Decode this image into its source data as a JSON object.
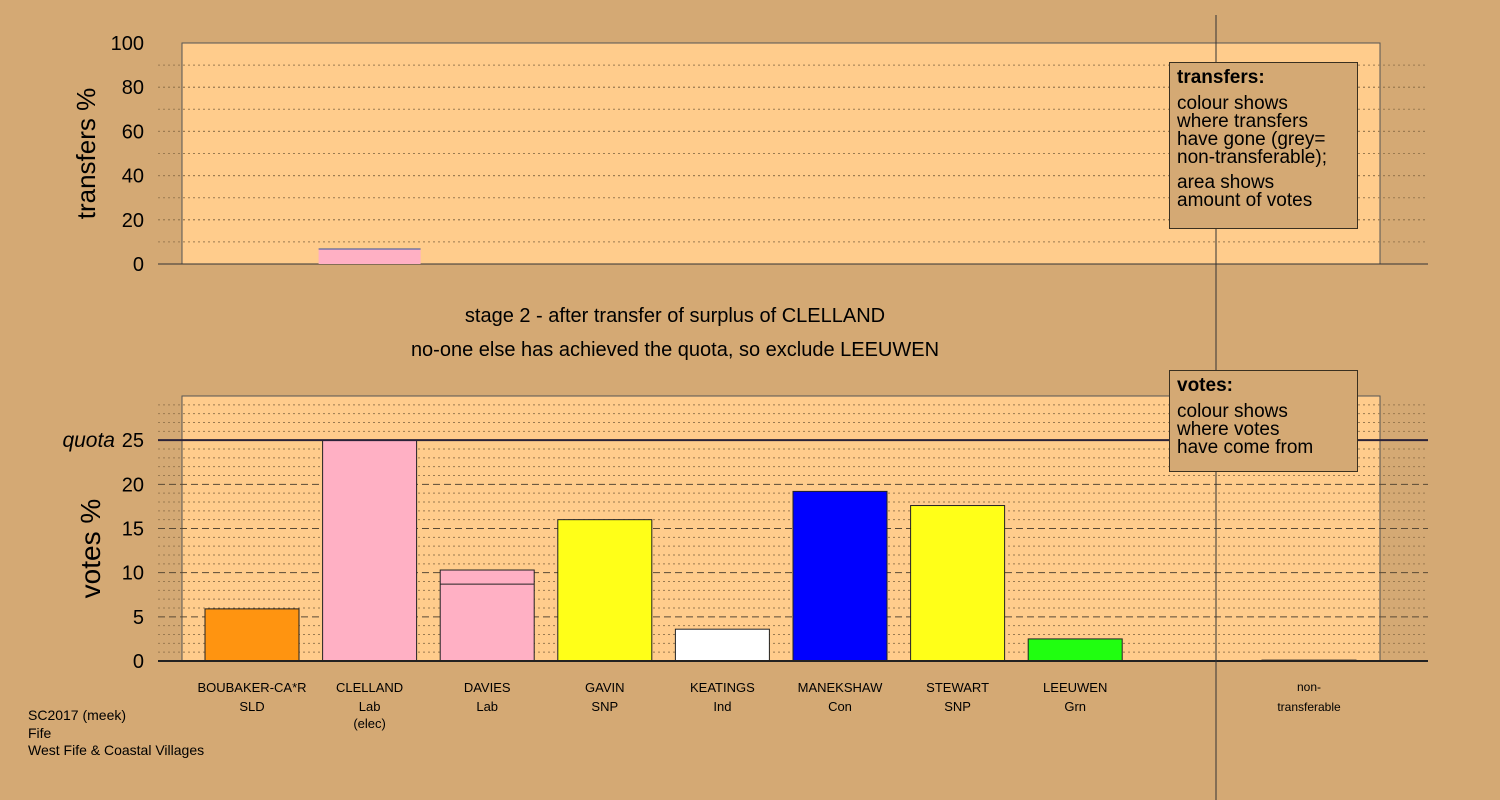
{
  "stage": {
    "line1": "stage 2 - after transfer of surplus of CLELLAND",
    "line2": "no-one else has achieved the quota, so exclude LEEUWEN"
  },
  "transfers_note": {
    "heading": "transfers:",
    "lines_a": [
      "colour shows",
      "where transfers",
      "have gone (grey=",
      "non-transferable);"
    ],
    "lines_b": [
      "area shows",
      "amount of votes"
    ]
  },
  "votes_note": {
    "heading": "votes:",
    "lines": [
      "colour shows",
      "where votes",
      "have come from"
    ]
  },
  "footer": {
    "line1": "SC2017 (meek)",
    "line2": "Fife",
    "line3": "West Fife & Coastal Villages"
  },
  "colors": {
    "background": "#d4a974",
    "plot_bg": "#ffcc8c",
    "SLD": "#ff9410",
    "Lab": "#ffb0c4",
    "SNP": "#ffff18",
    "Ind": "#ffffff",
    "Con": "#0000ff",
    "Grn": "#20ff10",
    "nontransferable": "#a0a0a0"
  },
  "chart_data": [
    {
      "type": "bar",
      "name": "transfers",
      "ylabel": "transfers %",
      "ylim": [
        0,
        100
      ],
      "yticks": [
        0,
        20,
        40,
        60,
        80,
        100
      ],
      "categories": [
        "CLELLAND"
      ],
      "values": [
        6.8
      ],
      "bar_colors": [
        "Lab"
      ]
    },
    {
      "type": "bar",
      "name": "votes",
      "ylabel": "votes %",
      "ylim": [
        0,
        30
      ],
      "yticks": [
        0,
        5,
        10,
        15,
        20,
        25
      ],
      "quota": 25,
      "quota_label": "quota",
      "categories": [
        {
          "name": "BOUBAKER-CA*R",
          "party": "SLD",
          "extra": "",
          "value": 5.9,
          "transfer": 0,
          "color": "SLD"
        },
        {
          "name": "CLELLAND",
          "party": "Lab",
          "extra": "(elec)",
          "value": 25.0,
          "transfer": 0,
          "color": "Lab"
        },
        {
          "name": "DAVIES",
          "party": "Lab",
          "extra": "",
          "value": 10.3,
          "transfer": 1.6,
          "color": "Lab"
        },
        {
          "name": "GAVIN",
          "party": "SNP",
          "extra": "",
          "value": 16.0,
          "transfer": 0,
          "color": "SNP"
        },
        {
          "name": "KEATINGS",
          "party": "Ind",
          "extra": "",
          "value": 3.6,
          "transfer": 0,
          "color": "Ind"
        },
        {
          "name": "MANEKSHAW",
          "party": "Con",
          "extra": "",
          "value": 19.2,
          "transfer": 0,
          "color": "Con"
        },
        {
          "name": "STEWART",
          "party": "SNP",
          "extra": "",
          "value": 17.6,
          "transfer": 0,
          "color": "SNP"
        },
        {
          "name": "LEEUWEN",
          "party": "Grn",
          "extra": "",
          "value": 2.5,
          "transfer": 0,
          "color": "Grn"
        }
      ],
      "nontransferable": {
        "line1": "non-",
        "line2": "transferable",
        "value": 0.1
      }
    }
  ]
}
